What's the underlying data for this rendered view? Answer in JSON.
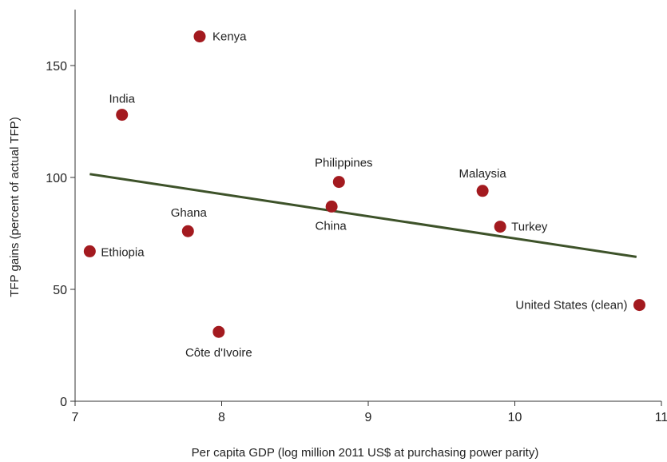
{
  "chart_data": {
    "type": "scatter",
    "xlabel": "Per capita GDP (log million 2011 US$ at purchasing power parity)",
    "ylabel": "TFP gains (percent of actual TFP)",
    "xlim": [
      7,
      11
    ],
    "ylim": [
      0,
      175
    ],
    "xticks": [
      "7",
      "8",
      "9",
      "10",
      "11"
    ],
    "yticks": [
      "0",
      "50",
      "100",
      "150"
    ],
    "point_color": "#a31a1f",
    "trend_color": "#3d5229",
    "points": [
      {
        "label": "Kenya",
        "x": 7.85,
        "y": 163
      },
      {
        "label": "India",
        "x": 7.32,
        "y": 128
      },
      {
        "label": "Philippines",
        "x": 8.8,
        "y": 98
      },
      {
        "label": "Malaysia",
        "x": 9.78,
        "y": 94
      },
      {
        "label": "China",
        "x": 8.75,
        "y": 87
      },
      {
        "label": "Turkey",
        "x": 9.9,
        "y": 78
      },
      {
        "label": "Ghana",
        "x": 7.77,
        "y": 76
      },
      {
        "label": "Ethiopia",
        "x": 7.1,
        "y": 67
      },
      {
        "label": "United States (clean)",
        "x": 10.85,
        "y": 43
      },
      {
        "label": "Côte d'Ivoire",
        "x": 7.98,
        "y": 31
      }
    ],
    "trendline": {
      "x": [
        7.1,
        10.83
      ],
      "y": [
        101.5,
        64.5
      ]
    }
  }
}
